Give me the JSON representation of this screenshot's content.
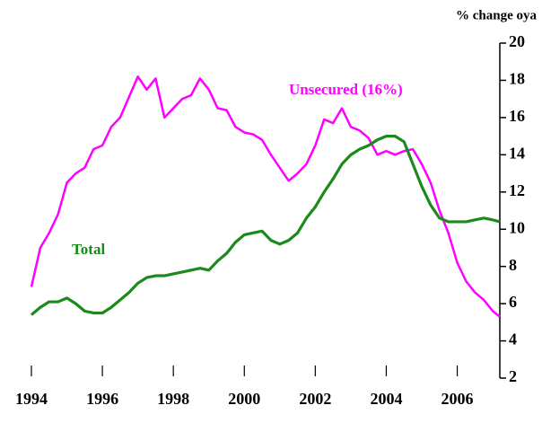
{
  "chart_data": {
    "type": "line",
    "y_axis_label": "% change oya",
    "x": [
      1994,
      1994.25,
      1994.5,
      1994.75,
      1995,
      1995.25,
      1995.5,
      1995.75,
      1996,
      1996.25,
      1996.5,
      1996.75,
      1997,
      1997.25,
      1997.5,
      1997.75,
      1998,
      1998.25,
      1998.5,
      1998.75,
      1999,
      1999.25,
      1999.5,
      1999.75,
      2000,
      2000.25,
      2000.5,
      2000.75,
      2001,
      2001.25,
      2001.5,
      2001.75,
      2002,
      2002.25,
      2002.5,
      2002.75,
      2003,
      2003.25,
      2003.5,
      2003.75,
      2004,
      2004.25,
      2004.5,
      2004.75,
      2005,
      2005.25,
      2005.5,
      2005.75,
      2006,
      2006.25,
      2006.5,
      2006.75,
      2007,
      2007.2
    ],
    "series": [
      {
        "name": "Unsecured (16%)",
        "color": "#ff00ff",
        "values": [
          6.9,
          9.0,
          9.8,
          10.8,
          12.5,
          13.0,
          13.3,
          14.3,
          14.5,
          15.5,
          16.0,
          17.1,
          18.2,
          17.5,
          18.1,
          16.0,
          16.5,
          17.0,
          17.2,
          18.1,
          17.5,
          16.5,
          16.4,
          15.5,
          15.2,
          15.1,
          14.8,
          14.0,
          13.3,
          12.6,
          13.0,
          13.5,
          14.5,
          15.9,
          15.7,
          16.5,
          15.5,
          15.3,
          14.9,
          14.0,
          14.2,
          14.0,
          14.2,
          14.3,
          13.5,
          12.5,
          11.0,
          9.8,
          8.2,
          7.2,
          6.6,
          6.2,
          5.6,
          5.3
        ]
      },
      {
        "name": "Total",
        "color": "#1a8a1a",
        "values": [
          5.4,
          5.8,
          6.1,
          6.1,
          6.3,
          6.0,
          5.6,
          5.5,
          5.5,
          5.8,
          6.2,
          6.6,
          7.1,
          7.4,
          7.5,
          7.5,
          7.6,
          7.7,
          7.8,
          7.9,
          7.8,
          8.3,
          8.7,
          9.3,
          9.7,
          9.8,
          9.9,
          9.4,
          9.2,
          9.4,
          9.8,
          10.6,
          11.2,
          12.0,
          12.7,
          13.5,
          14.0,
          14.3,
          14.5,
          14.8,
          15.0,
          15.0,
          14.7,
          13.5,
          12.3,
          11.3,
          10.6,
          10.4,
          10.4,
          10.4,
          10.5,
          10.6,
          10.5,
          10.4
        ]
      }
    ],
    "xlim": [
      1994,
      2007.2
    ],
    "xticks": [
      1994,
      1996,
      1998,
      2000,
      2002,
      2004,
      2006
    ],
    "ylim": [
      2,
      20
    ],
    "yticks": [
      2,
      4,
      6,
      8,
      10,
      12,
      14,
      16,
      18,
      20
    ],
    "grid": false
  }
}
